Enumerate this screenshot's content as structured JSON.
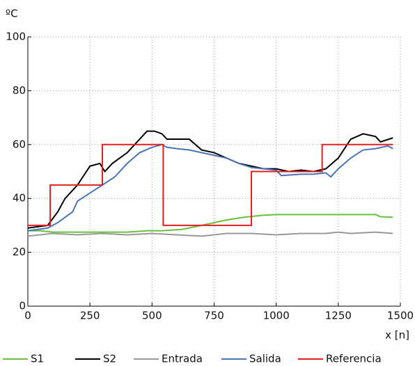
{
  "chart_data": {
    "type": "line",
    "y_label": "ºC",
    "x_label": "x [n]",
    "xlim": [
      0,
      1500
    ],
    "xticks": [
      0,
      250,
      500,
      750,
      1000,
      1250,
      1500
    ],
    "ylim": [
      0,
      100
    ],
    "yticks": [
      0,
      20,
      40,
      60,
      80,
      100
    ],
    "grid": true,
    "legend": "bottom",
    "series": [
      {
        "name": "S1",
        "color": "#6abf3d",
        "x": [
          0,
          50,
          100,
          200,
          300,
          400,
          480,
          540,
          620,
          700,
          800,
          870,
          950,
          1000,
          1100,
          1200,
          1300,
          1400,
          1420,
          1470
        ],
        "values": [
          28,
          28,
          27.5,
          27.5,
          27.5,
          27.5,
          28,
          28,
          28.5,
          30,
          32,
          33,
          33.8,
          34,
          34,
          34,
          34,
          34,
          33.2,
          33
        ]
      },
      {
        "name": "S2",
        "color": "#000000",
        "x": [
          0,
          80,
          120,
          150,
          200,
          250,
          290,
          310,
          340,
          400,
          450,
          480,
          510,
          540,
          560,
          600,
          650,
          700,
          750,
          800,
          850,
          900,
          950,
          1000,
          1050,
          1100,
          1150,
          1200,
          1250,
          1300,
          1350,
          1400,
          1420,
          1470
        ],
        "values": [
          29,
          30,
          35,
          40,
          45,
          52,
          53,
          50,
          53,
          57,
          62,
          65,
          65,
          64,
          62,
          62,
          62,
          58,
          57,
          55,
          53,
          52,
          51,
          51,
          50,
          50.5,
          50,
          51,
          55,
          62,
          64,
          63,
          61,
          62.5
        ]
      },
      {
        "name": "Entrada",
        "color": "#999999",
        "x": [
          0,
          100,
          200,
          300,
          400,
          500,
          600,
          700,
          800,
          900,
          1000,
          1100,
          1200,
          1250,
          1300,
          1400,
          1470
        ],
        "values": [
          26,
          27,
          26.5,
          27,
          26.5,
          27,
          26.5,
          26,
          27,
          27,
          26.5,
          27,
          27,
          27.5,
          27,
          27.5,
          27
        ]
      },
      {
        "name": "Salida",
        "color": "#4a74b4",
        "x": [
          0,
          80,
          120,
          180,
          200,
          250,
          300,
          350,
          400,
          450,
          500,
          540,
          560,
          600,
          650,
          700,
          750,
          800,
          850,
          900,
          950,
          1000,
          1020,
          1100,
          1150,
          1200,
          1220,
          1250,
          1300,
          1350,
          1400,
          1450,
          1470
        ],
        "values": [
          28,
          29,
          31,
          35,
          39,
          42,
          45,
          48,
          53,
          57,
          59,
          60,
          59,
          58.5,
          58,
          57,
          56,
          55,
          53,
          51.5,
          51,
          50.5,
          48.5,
          49,
          49,
          49.5,
          48,
          51,
          55,
          58,
          58.5,
          59.5,
          58.5
        ]
      },
      {
        "name": "Referencia",
        "color": "#e02020",
        "x": [
          0,
          90,
          90,
          300,
          300,
          545,
          545,
          900,
          900,
          1185,
          1185,
          1470
        ],
        "values": [
          30,
          30,
          45,
          45,
          60,
          60,
          30,
          30,
          50,
          50,
          60,
          60
        ]
      }
    ]
  }
}
